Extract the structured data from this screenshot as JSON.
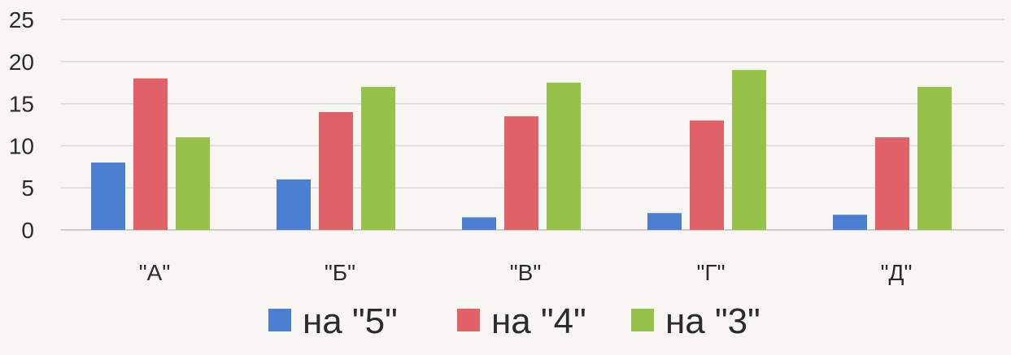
{
  "chart_data": {
    "type": "bar",
    "categories": [
      "\"А\"",
      "\"Б\"",
      "\"В\"",
      "\"Г\"",
      "\"Д\""
    ],
    "series": [
      {
        "name": "на \"5\"",
        "color": "#4a7fd1",
        "values": [
          8,
          6,
          1.5,
          2,
          1.8
        ]
      },
      {
        "name": "на \"4\"",
        "color": "#e06168",
        "values": [
          18,
          14,
          13.5,
          13,
          11
        ]
      },
      {
        "name": "на \"3\"",
        "color": "#97c24a",
        "values": [
          11,
          17,
          17.5,
          19,
          17
        ]
      }
    ],
    "y_ticks": [
      0,
      5,
      10,
      15,
      20,
      25
    ],
    "ylim": [
      0,
      25
    ],
    "grid": true,
    "legend_position": "bottom"
  }
}
